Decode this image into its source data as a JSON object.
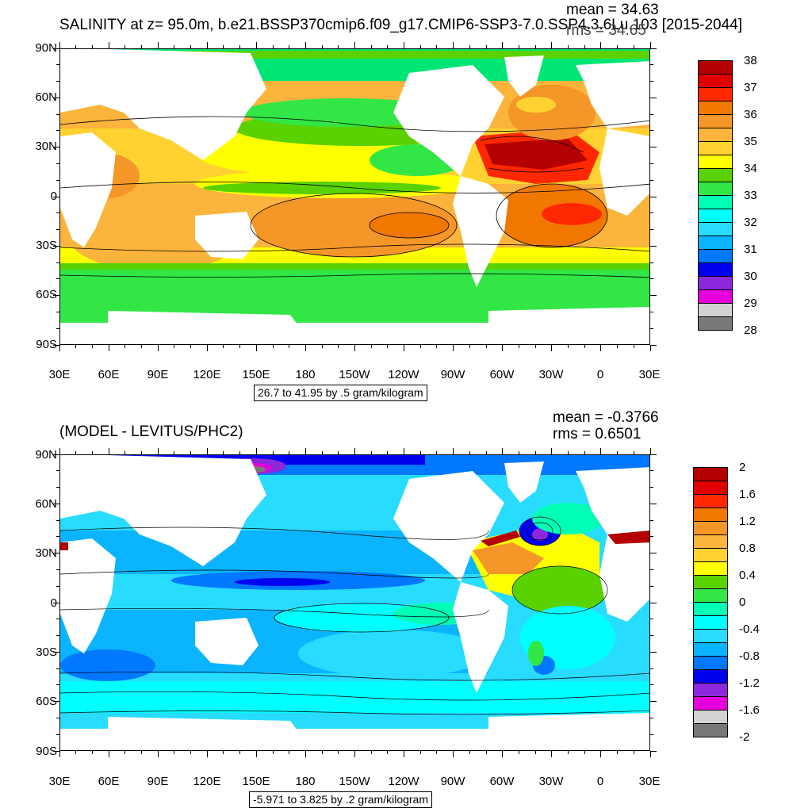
{
  "top": {
    "title": "SALINITY at z=  95.0m, b.e21.BSSP370cmip6.f09_g17.CMIP6-SSP3-7.0.SSP4.3.6Lu.103 [2015-2044]",
    "mean": "mean = 34.63",
    "rms": "rms = 34.65",
    "range_note": "26.7 to 41.95 by .5 gram/kilogram",
    "colorbar": {
      "labels": [
        "38",
        "37",
        "36",
        "35",
        "34",
        "33",
        "32",
        "31",
        "30",
        "29",
        "28"
      ],
      "colors": [
        "#b40000",
        "#e00000",
        "#ff2800",
        "#f07800",
        "#f59628",
        "#fbb43c",
        "#ffd232",
        "#ffff00",
        "#5ad200",
        "#32e646",
        "#00ffb4",
        "#00ffff",
        "#28dcff",
        "#0ab4ff",
        "#0078ff",
        "#0000f0",
        "#8c28dc",
        "#e600dc",
        "#d2d2d2",
        "#787878"
      ]
    }
  },
  "bottom": {
    "title": "(MODEL - LEVITUS/PHC2)",
    "mean": "mean = -0.3766",
    "rms": "rms = 0.6501",
    "range_note": "-5.971 to 3.825 by .2 gram/kilogram",
    "colorbar": {
      "labels": [
        "2",
        "1.6",
        "1.2",
        "0.8",
        "0.4",
        "0",
        "-0.4",
        "-0.8",
        "-1.2",
        "-1.6",
        "-2"
      ],
      "colors": [
        "#b40000",
        "#e00000",
        "#ff2800",
        "#f07800",
        "#f59628",
        "#fbb43c",
        "#ffd232",
        "#ffff00",
        "#5ad200",
        "#32e646",
        "#00ffb4",
        "#00ffff",
        "#28dcff",
        "#0ab4ff",
        "#0078ff",
        "#0000f0",
        "#8c28dc",
        "#e600dc",
        "#d2d2d2",
        "#787878"
      ]
    }
  },
  "axes": {
    "lat_labels": [
      "90N",
      "60N",
      "30N",
      "0",
      "30S",
      "60S",
      "90S"
    ],
    "lon_labels": [
      "30E",
      "60E",
      "90E",
      "120E",
      "150E",
      "180",
      "150W",
      "120W",
      "90W",
      "60W",
      "30W",
      "0",
      "30E"
    ]
  },
  "palette": {
    "land": "#ffffff",
    "top_base": "#fbb43c",
    "bottom_base": "#28dcff"
  }
}
